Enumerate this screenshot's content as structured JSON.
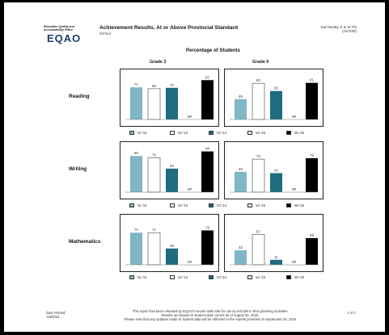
{
  "header": {
    "org_line1": "Education Quality and",
    "org_line2": "Accountability Office",
    "logo": "EQAO",
    "title": "Achievement Results, At or Above Provincial Standard",
    "subtitle": "School",
    "school_name": "Earl Beatty Jr & Sr PS",
    "school_id": "(157635)"
  },
  "percentage_title": "Percentage of Students",
  "grades": [
    "Grade 3",
    "Grade 6"
  ],
  "colors": {
    "y2011": "#7fb7c6",
    "y2012": "#ffffff",
    "y2013": "#1f6b80",
    "y2014": "#d9e8ee",
    "y2015": "#000000"
  },
  "legend": [
    "'11-'12",
    "'12-'13",
    "'13-'14",
    "'14-'15",
    "'15-'16"
  ],
  "np_label": "NP",
  "chart_data": [
    {
      "type": "bar",
      "subject": "Reading",
      "grade": "Grade 3",
      "categories": [
        "'11-'12",
        "'12-'13",
        "'13-'14",
        "'14-'15",
        "'15-'16"
      ],
      "values": [
        71,
        68,
        70,
        null,
        87
      ],
      "ylim": [
        0,
        100
      ]
    },
    {
      "type": "bar",
      "subject": "Reading",
      "grade": "Grade 6",
      "categories": [
        "'11-'12",
        "'12-'13",
        "'13-'14",
        "'14-'15",
        "'15-'16"
      ],
      "values": [
        45,
        80,
        63,
        null,
        81
      ],
      "ylim": [
        0,
        100
      ]
    },
    {
      "type": "bar",
      "subject": "Writing",
      "grade": "Grade 3",
      "categories": [
        "'11-'12",
        "'12-'13",
        "'13-'14",
        "'14-'15",
        "'15-'16"
      ],
      "values": [
        80,
        76,
        52,
        null,
        90
      ],
      "ylim": [
        0,
        100
      ]
    },
    {
      "type": "bar",
      "subject": "Writing",
      "grade": "Grade 6",
      "categories": [
        "'11-'12",
        "'12-'13",
        "'13-'14",
        "'14-'15",
        "'15-'16"
      ],
      "values": [
        45,
        73,
        42,
        null,
        75
      ],
      "ylim": [
        0,
        100
      ]
    },
    {
      "type": "bar",
      "subject": "Mathematics",
      "grade": "Grade 3",
      "categories": [
        "'11-'12",
        "'12-'13",
        "'13-'14",
        "'14-'15",
        "'15-'16"
      ],
      "values": [
        71,
        71,
        36,
        null,
        76
      ],
      "ylim": [
        0,
        100
      ]
    },
    {
      "type": "bar",
      "subject": "Mathematics",
      "grade": "Grade 6",
      "categories": [
        "'11-'12",
        "'12-'13",
        "'13-'14",
        "'14-'15",
        "'15-'16"
      ],
      "values": [
        32,
        67,
        11,
        null,
        59
      ],
      "ylim": [
        0,
        100
      ]
    }
  ],
  "footer": {
    "date_label": "Date Printed:",
    "date_value": "7/8/2016",
    "line1": "This report has been released by EQAO's secure Web site for use by schools in their planning activities.",
    "line2": "Results are based on student data current as of August 30, 2016.",
    "line3": "Please note that any updates made to student data will be reflected in the reports provided on September 20, 2016",
    "page": "1 of 1"
  }
}
